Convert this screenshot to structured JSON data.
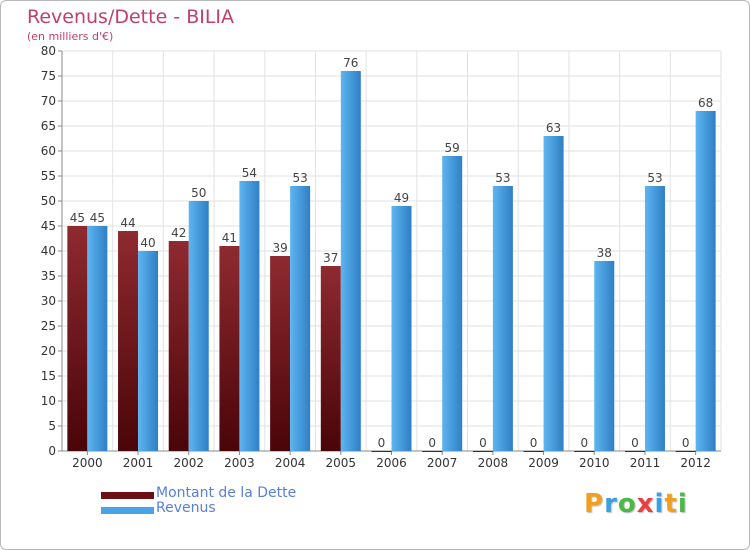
{
  "title": "Revenus/Dette - BILIA",
  "subtitle": "(en milliers d'€)",
  "colors": {
    "debt": "#8b1f27",
    "revenue": "#4aa3e6",
    "title": "#c0406a",
    "legend_text": "#5a7fd6"
  },
  "legend": [
    {
      "label": "Montant de la Dette",
      "color": "#6b0f15"
    },
    {
      "label": "Revenus",
      "color": "#4aa3e6"
    }
  ],
  "logo": {
    "letters": [
      "P",
      "r",
      "o",
      "x",
      "i",
      "t",
      "i"
    ],
    "colors": [
      "#f0a020",
      "#3aa0e0",
      "#4cb848",
      "#e84040",
      "#3aa0e0",
      "#f0a020",
      "#4cb848"
    ]
  },
  "chart_data": {
    "type": "bar",
    "categories": [
      "2000",
      "2001",
      "2002",
      "2003",
      "2004",
      "2005",
      "2006",
      "2007",
      "2008",
      "2009",
      "2010",
      "2011",
      "2012"
    ],
    "series": [
      {
        "name": "Montant de la Dette",
        "values": [
          45,
          44,
          42,
          41,
          39,
          37,
          0,
          0,
          0,
          0,
          0,
          0,
          0
        ]
      },
      {
        "name": "Revenus",
        "values": [
          45,
          40,
          50,
          54,
          53,
          76,
          49,
          59,
          53,
          63,
          38,
          53,
          68
        ]
      }
    ],
    "ylim": [
      0,
      80
    ],
    "yticks": [
      0,
      5,
      10,
      15,
      20,
      25,
      30,
      35,
      40,
      45,
      50,
      55,
      60,
      65,
      70,
      75,
      80
    ],
    "grid": true,
    "legend_position": "bottom-left"
  }
}
